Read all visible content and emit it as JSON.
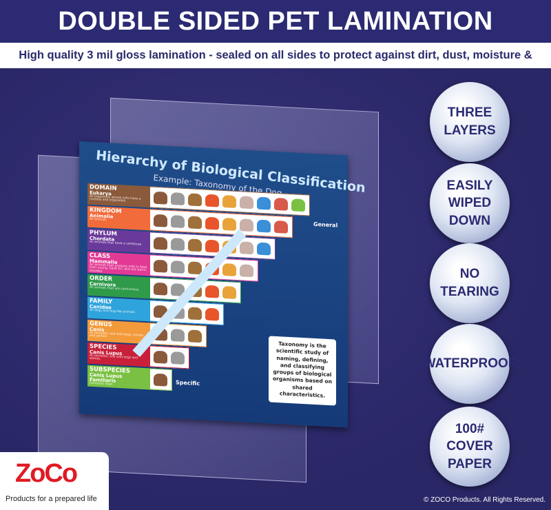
{
  "header": {
    "title": "DOUBLE SIDED PET LAMINATION",
    "subtitle": "High quality 3 mil gloss lamination - sealed on all sides to protect against dirt, dust, moisture & humidity."
  },
  "poster": {
    "title": "Hierarchy of Biological Classification",
    "subtitle": "Example: Taxonomy of the Dog",
    "general": "General",
    "specific": "Specific",
    "note": "Taxonomy is the scientific study of naming, defining, and classifying groups of biological organisms based on shared characteristics.",
    "levels": [
      {
        "rank": "DOMAIN",
        "name": "Eukarya",
        "desc": "All organisms whose cells have a nucleus and organelles",
        "color": "#8a5a3b",
        "count": 9
      },
      {
        "rank": "KINGDOM",
        "name": "Animalia",
        "desc": "All animals",
        "color": "#f26b3a",
        "count": 8
      },
      {
        "rank": "PHYLUM",
        "name": "Chordata",
        "desc": "All animals that have a vertebrae",
        "color": "#6a3a9a",
        "count": 7
      },
      {
        "rank": "CLASS",
        "name": "Mammalia",
        "desc": "All animals that produce milk to feed their young, have fur, and are warm-blooded",
        "color": "#e23a94",
        "count": 6
      },
      {
        "rank": "ORDER",
        "name": "Carnivora",
        "desc": "All animals that are carnivorous",
        "color": "#2f9a4a",
        "count": 5
      },
      {
        "rank": "FAMILY",
        "name": "Canidae",
        "desc": "All dogs and dog-like animals",
        "color": "#2fa3dc",
        "count": 4
      },
      {
        "rank": "GENUS",
        "name": "Canis",
        "desc": "All domestic and wild dogs, wolves, and jackals",
        "color": "#f39a3a",
        "count": 3
      },
      {
        "rank": "SPECIES",
        "name": "Canis Lupus",
        "desc": "All domestic and wild dogs and wolves",
        "color": "#c8203a",
        "count": 2
      },
      {
        "rank": "SUBSPECIES",
        "name": "Canis Lupus Familiaris",
        "desc": "Domestic dogs",
        "color": "#7ac143",
        "count": 1
      }
    ],
    "animal_colors": [
      "#8a5a3b",
      "#9a9a9a",
      "#a0703a",
      "#e8552a",
      "#e8a33a",
      "#c9b0a8",
      "#3a8fd8",
      "#d85a4a",
      "#7ac143"
    ]
  },
  "badges": [
    "THREE\nLAYERS",
    "EASILY\nWIPED DOWN",
    "NO\nTEARING",
    "WATERPROOF",
    "100#\nCOVER\nPAPER"
  ],
  "logo": {
    "brand": "ZoCo",
    "tagline": "Products for a prepared life"
  },
  "copyright": "© ZOCO Products. All Rights Reserved."
}
